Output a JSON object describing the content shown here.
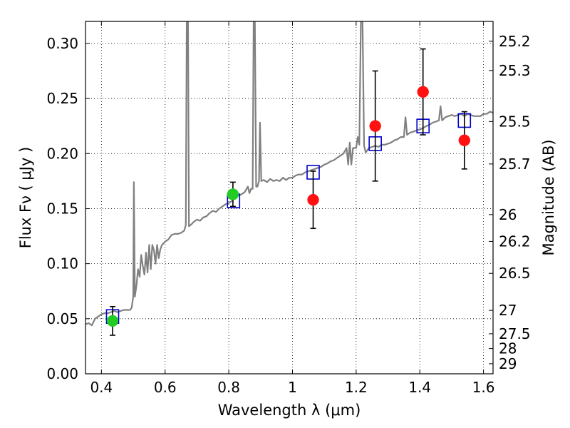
{
  "chart_data": {
    "type": "scatter",
    "title": "",
    "xlabel": "Wavelength  λ (μm)",
    "ylabel": "Flux  Fν  ( μJy )",
    "ylabel_right": "Magnitude (AB)",
    "xlim": [
      0.35,
      1.63
    ],
    "ylim": [
      0.0,
      0.32
    ],
    "grid": true,
    "x_ticks": [
      {
        "value": 0.4,
        "label": "0.4"
      },
      {
        "value": 0.6,
        "label": "0.6"
      },
      {
        "value": 0.8,
        "label": "0.8"
      },
      {
        "value": 1.0,
        "label": "1"
      },
      {
        "value": 1.2,
        "label": "1.2"
      },
      {
        "value": 1.4,
        "label": "1.4"
      },
      {
        "value": 1.6,
        "label": "1.6"
      }
    ],
    "y_ticks": [
      {
        "value": 0.0,
        "label": "0.00"
      },
      {
        "value": 0.05,
        "label": "0.05"
      },
      {
        "value": 0.1,
        "label": "0.10"
      },
      {
        "value": 0.15,
        "label": "0.15"
      },
      {
        "value": 0.2,
        "label": "0.20"
      },
      {
        "value": 0.25,
        "label": "0.25"
      },
      {
        "value": 0.3,
        "label": "0.30"
      }
    ],
    "mag_ticks": [
      {
        "mag": 25.2,
        "label": "25.2"
      },
      {
        "mag": 25.3,
        "label": "25.3"
      },
      {
        "mag": 25.5,
        "label": "25.5"
      },
      {
        "mag": 25.7,
        "label": "25.7"
      },
      {
        "mag": 26.0,
        "label": "26"
      },
      {
        "mag": 26.2,
        "label": "26.2"
      },
      {
        "mag": 26.5,
        "label": "26.5"
      },
      {
        "mag": 27.0,
        "label": "27"
      },
      {
        "mag": 27.5,
        "label": "27.5"
      },
      {
        "mag": 28.0,
        "label": "28"
      },
      {
        "mag": 29.0,
        "label": "29"
      }
    ],
    "series": [
      {
        "name": "model-spectrum",
        "kind": "line",
        "color": "#808080",
        "points": [
          [
            0.35,
            0.045
          ],
          [
            0.36,
            0.046
          ],
          [
            0.37,
            0.044
          ],
          [
            0.38,
            0.05
          ],
          [
            0.39,
            0.052
          ],
          [
            0.4,
            0.054
          ],
          [
            0.41,
            0.055
          ],
          [
            0.42,
            0.055
          ],
          [
            0.43,
            0.056
          ],
          [
            0.44,
            0.057
          ],
          [
            0.45,
            0.056
          ],
          [
            0.46,
            0.057
          ],
          [
            0.47,
            0.058
          ],
          [
            0.48,
            0.058
          ],
          [
            0.49,
            0.058
          ],
          [
            0.495,
            0.06
          ],
          [
            0.5,
            0.07
          ],
          [
            0.502,
            0.174
          ],
          [
            0.505,
            0.07
          ],
          [
            0.51,
            0.08
          ],
          [
            0.515,
            0.095
          ],
          [
            0.52,
            0.088
          ],
          [
            0.525,
            0.108
          ],
          [
            0.53,
            0.098
          ],
          [
            0.535,
            0.09
          ],
          [
            0.54,
            0.11
          ],
          [
            0.545,
            0.092
          ],
          [
            0.55,
            0.117
          ],
          [
            0.555,
            0.095
          ],
          [
            0.56,
            0.117
          ],
          [
            0.565,
            0.112
          ],
          [
            0.57,
            0.1
          ],
          [
            0.575,
            0.117
          ],
          [
            0.58,
            0.105
          ],
          [
            0.585,
            0.113
          ],
          [
            0.59,
            0.117
          ],
          [
            0.6,
            0.12
          ],
          [
            0.61,
            0.122
          ],
          [
            0.62,
            0.126
          ],
          [
            0.63,
            0.127
          ],
          [
            0.64,
            0.127
          ],
          [
            0.65,
            0.128
          ],
          [
            0.66,
            0.13
          ],
          [
            0.665,
            0.135
          ],
          [
            0.668,
            0.32
          ],
          [
            0.672,
            0.32
          ],
          [
            0.675,
            0.134
          ],
          [
            0.68,
            0.135
          ],
          [
            0.69,
            0.138
          ],
          [
            0.7,
            0.14
          ],
          [
            0.71,
            0.139
          ],
          [
            0.72,
            0.142
          ],
          [
            0.73,
            0.143
          ],
          [
            0.74,
            0.146
          ],
          [
            0.75,
            0.148
          ],
          [
            0.76,
            0.147
          ],
          [
            0.77,
            0.15
          ],
          [
            0.78,
            0.152
          ],
          [
            0.79,
            0.154
          ],
          [
            0.8,
            0.155
          ],
          [
            0.81,
            0.157
          ],
          [
            0.82,
            0.16
          ],
          [
            0.83,
            0.162
          ],
          [
            0.84,
            0.163
          ],
          [
            0.85,
            0.165
          ],
          [
            0.86,
            0.17
          ],
          [
            0.865,
            0.164
          ],
          [
            0.87,
            0.168
          ],
          [
            0.875,
            0.168
          ],
          [
            0.878,
            0.32
          ],
          [
            0.882,
            0.32
          ],
          [
            0.886,
            0.17
          ],
          [
            0.89,
            0.17
          ],
          [
            0.895,
            0.175
          ],
          [
            0.898,
            0.228
          ],
          [
            0.902,
            0.175
          ],
          [
            0.91,
            0.176
          ],
          [
            0.92,
            0.174
          ],
          [
            0.93,
            0.177
          ],
          [
            0.94,
            0.175
          ],
          [
            0.95,
            0.176
          ],
          [
            0.96,
            0.175
          ],
          [
            0.97,
            0.178
          ],
          [
            0.98,
            0.176
          ],
          [
            0.99,
            0.178
          ],
          [
            1.0,
            0.178
          ],
          [
            1.01,
            0.18
          ],
          [
            1.02,
            0.181
          ],
          [
            1.03,
            0.181
          ],
          [
            1.04,
            0.183
          ],
          [
            1.05,
            0.184
          ],
          [
            1.06,
            0.185
          ],
          [
            1.07,
            0.186
          ],
          [
            1.08,
            0.187
          ],
          [
            1.09,
            0.188
          ],
          [
            1.1,
            0.19
          ],
          [
            1.11,
            0.191
          ],
          [
            1.12,
            0.193
          ],
          [
            1.13,
            0.194
          ],
          [
            1.14,
            0.196
          ],
          [
            1.15,
            0.198
          ],
          [
            1.16,
            0.2
          ],
          [
            1.17,
            0.205
          ],
          [
            1.175,
            0.19
          ],
          [
            1.18,
            0.21
          ],
          [
            1.185,
            0.19
          ],
          [
            1.19,
            0.205
          ],
          [
            1.2,
            0.205
          ],
          [
            1.205,
            0.215
          ],
          [
            1.21,
            0.208
          ],
          [
            1.215,
            0.32
          ],
          [
            1.22,
            0.32
          ],
          [
            1.225,
            0.207
          ],
          [
            1.23,
            0.201
          ],
          [
            1.24,
            0.205
          ],
          [
            1.25,
            0.206
          ],
          [
            1.26,
            0.207
          ],
          [
            1.27,
            0.206
          ],
          [
            1.28,
            0.208
          ],
          [
            1.29,
            0.208
          ],
          [
            1.3,
            0.209
          ],
          [
            1.31,
            0.21
          ],
          [
            1.32,
            0.212
          ],
          [
            1.33,
            0.213
          ],
          [
            1.34,
            0.215
          ],
          [
            1.35,
            0.215
          ],
          [
            1.355,
            0.233
          ],
          [
            1.36,
            0.217
          ],
          [
            1.37,
            0.219
          ],
          [
            1.38,
            0.22
          ],
          [
            1.39,
            0.221
          ],
          [
            1.4,
            0.222
          ],
          [
            1.41,
            0.223
          ],
          [
            1.42,
            0.225
          ],
          [
            1.43,
            0.226
          ],
          [
            1.44,
            0.228
          ],
          [
            1.45,
            0.229
          ],
          [
            1.46,
            0.23
          ],
          [
            1.465,
            0.243
          ],
          [
            1.47,
            0.23
          ],
          [
            1.48,
            0.233
          ],
          [
            1.49,
            0.234
          ],
          [
            1.5,
            0.235
          ],
          [
            1.51,
            0.234
          ],
          [
            1.52,
            0.235
          ],
          [
            1.53,
            0.236
          ],
          [
            1.54,
            0.234
          ],
          [
            1.55,
            0.236
          ],
          [
            1.56,
            0.235
          ],
          [
            1.57,
            0.234
          ],
          [
            1.58,
            0.234
          ],
          [
            1.59,
            0.234
          ],
          [
            1.6,
            0.236
          ],
          [
            1.61,
            0.236
          ],
          [
            1.62,
            0.238
          ],
          [
            1.63,
            0.237
          ]
        ]
      },
      {
        "name": "model-band-flux",
        "kind": "open-square",
        "color": "#0000cc",
        "points": [
          [
            0.435,
            0.052
          ],
          [
            0.815,
            0.157
          ],
          [
            1.065,
            0.183
          ],
          [
            1.26,
            0.209
          ],
          [
            1.41,
            0.225
          ],
          [
            1.54,
            0.23
          ]
        ]
      },
      {
        "name": "optical-detections",
        "kind": "filled-circle",
        "color": "#22cc22",
        "points": [
          [
            0.435,
            0.048,
            0.013
          ],
          [
            0.813,
            0.163,
            0.011
          ]
        ]
      },
      {
        "name": "nir-detections",
        "kind": "filled-circle",
        "color": "#ff1111",
        "points": [
          [
            1.065,
            0.158,
            0.026
          ],
          [
            1.26,
            0.225,
            0.05
          ],
          [
            1.41,
            0.256,
            0.039
          ],
          [
            1.54,
            0.212,
            0.026
          ]
        ]
      }
    ]
  }
}
